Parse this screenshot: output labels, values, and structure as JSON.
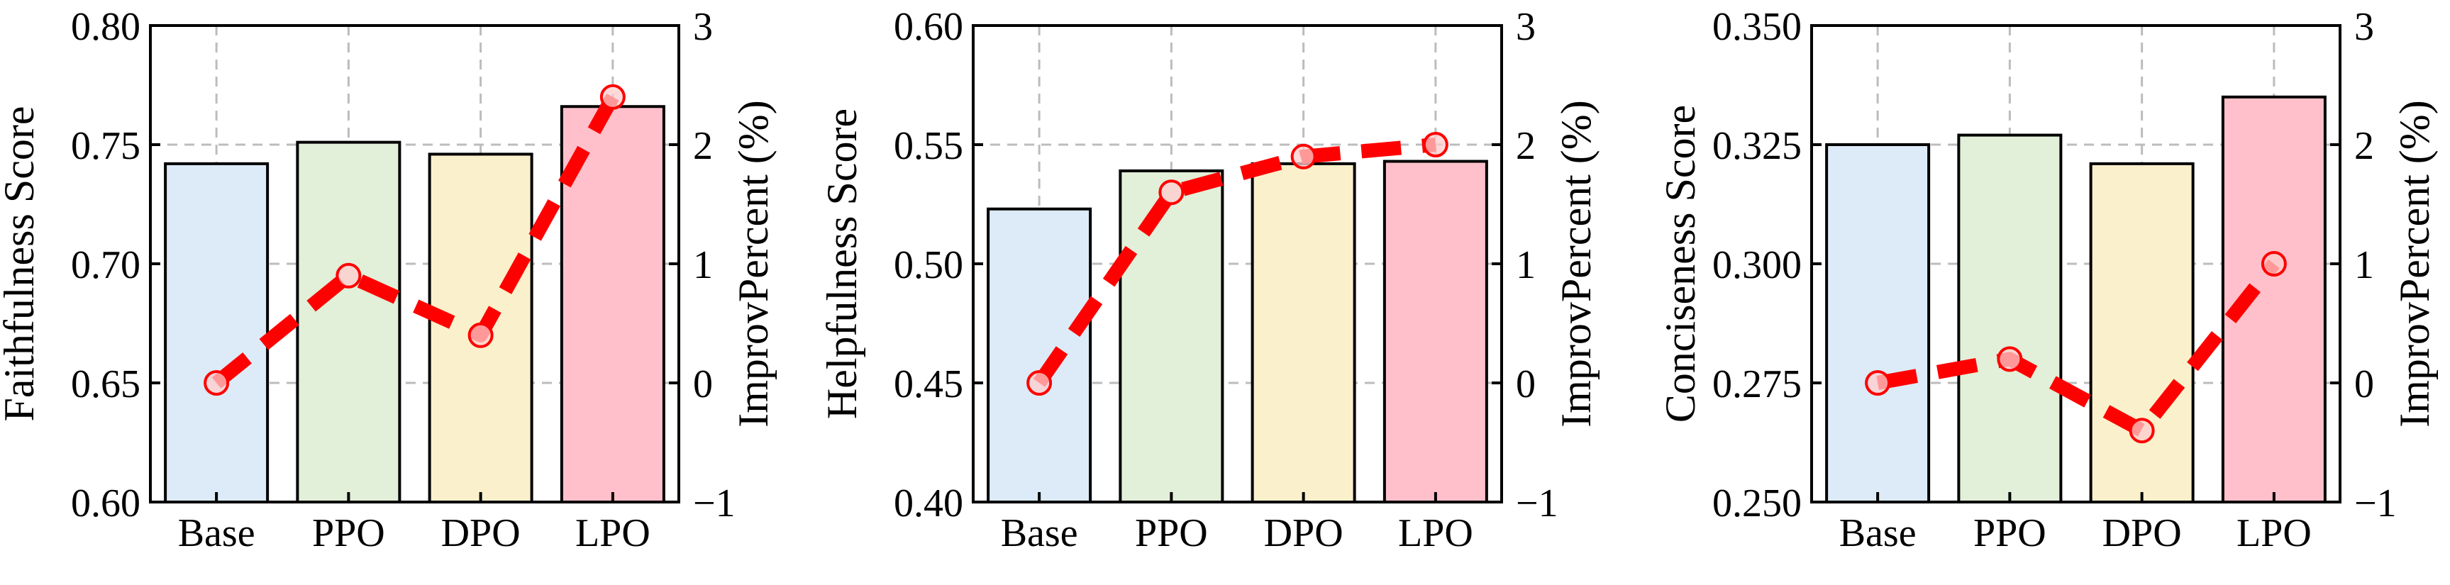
{
  "chart_data": [
    {
      "type": "bar",
      "categories": [
        "Base",
        "PPO",
        "DPO",
        "LPO"
      ],
      "values": [
        0.742,
        0.751,
        0.746,
        0.766
      ],
      "ylabel": "Faithfulness Score",
      "ylim": [
        0.6,
        0.8
      ],
      "yticks": [
        "0.60",
        "0.65",
        "0.70",
        "0.75",
        "0.80"
      ],
      "bar_colors": [
        "#dcebf7",
        "#e2efd9",
        "#fbf0cc",
        "#ffc0cb"
      ],
      "secondary": {
        "type": "line",
        "values": [
          0.0,
          0.9,
          0.4,
          2.4
        ],
        "ylabel": "ImprovPercent (%)",
        "ylim": [
          -1,
          3
        ],
        "yticks": [
          "−1",
          "0",
          "1",
          "2",
          "3"
        ],
        "color": "#ff0000",
        "style": "dashed"
      },
      "grid": true
    },
    {
      "type": "bar",
      "categories": [
        "Base",
        "PPO",
        "DPO",
        "LPO"
      ],
      "values": [
        0.523,
        0.539,
        0.542,
        0.543
      ],
      "ylabel": "Helpfulness Score",
      "ylim": [
        0.4,
        0.6
      ],
      "yticks": [
        "0.40",
        "0.45",
        "0.50",
        "0.55",
        "0.60"
      ],
      "bar_colors": [
        "#dcebf7",
        "#e2efd9",
        "#fbf0cc",
        "#ffc0cb"
      ],
      "secondary": {
        "type": "line",
        "values": [
          0.0,
          1.6,
          1.9,
          2.0
        ],
        "ylabel": "ImprovPercent (%)",
        "ylim": [
          -1,
          3
        ],
        "yticks": [
          "−1",
          "0",
          "1",
          "2",
          "3"
        ],
        "color": "#ff0000",
        "style": "dashed"
      },
      "grid": true
    },
    {
      "type": "bar",
      "categories": [
        "Base",
        "PPO",
        "DPO",
        "LPO"
      ],
      "values": [
        0.325,
        0.327,
        0.321,
        0.335
      ],
      "ylabel": "Conciseness Score",
      "ylim": [
        0.25,
        0.35
      ],
      "yticks": [
        "0.250",
        "0.275",
        "0.300",
        "0.325",
        "0.350"
      ],
      "bar_colors": [
        "#dcebf7",
        "#e2efd9",
        "#fbf0cc",
        "#ffc0cb"
      ],
      "secondary": {
        "type": "line",
        "values": [
          0.0,
          0.2,
          -0.4,
          1.0
        ],
        "ylabel": "ImprovPercent (%)",
        "ylim": [
          -1,
          3
        ],
        "yticks": [
          "−1",
          "0",
          "1",
          "2",
          "3"
        ],
        "color": "#ff0000",
        "style": "dashed"
      },
      "grid": true
    }
  ]
}
